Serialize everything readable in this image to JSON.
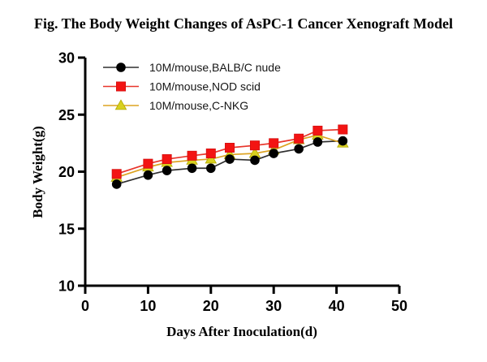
{
  "figure": {
    "title": "Fig. The Body Weight Changes of AsPC-1 Cancer Xenograft Model"
  },
  "chart_data": {
    "type": "line",
    "title": "Fig. The Body Weight Changes of AsPC-1 Cancer Xenograft Model",
    "xlabel": "Days After Inoculation(d)",
    "ylabel": "Body Weight(g)",
    "xlim": [
      0,
      50
    ],
    "ylim": [
      10,
      30
    ],
    "xticks": [
      0,
      10,
      20,
      30,
      40,
      50
    ],
    "yticks": [
      10,
      15,
      20,
      25,
      30
    ],
    "grid": false,
    "legend_position": "top-left",
    "x": [
      5,
      10,
      13,
      17,
      20,
      23,
      27,
      30,
      34,
      37,
      41
    ],
    "series": [
      {
        "name": "10M/mouse,BALB/C nude",
        "marker": "circle",
        "marker_color": "#000000",
        "marker_edge": "#000000",
        "line_color": "#2f2f2f",
        "values": [
          18.9,
          19.7,
          20.1,
          20.3,
          20.3,
          21.1,
          21.0,
          21.6,
          22.0,
          22.6,
          22.7
        ]
      },
      {
        "name": "10M/mouse,NOD scid",
        "marker": "square",
        "marker_color": "#f31413",
        "marker_edge": "#d40f0f",
        "line_color": "#e8352b",
        "values": [
          19.8,
          20.7,
          21.1,
          21.4,
          21.6,
          22.1,
          22.3,
          22.5,
          22.9,
          23.6,
          23.7
        ]
      },
      {
        "name": "10M/mouse,C-NKG",
        "marker": "triangle",
        "marker_color": "#d8d01f",
        "marker_edge": "#b2a900",
        "line_color": "#dda321",
        "values": [
          19.5,
          20.4,
          20.8,
          21.0,
          21.1,
          21.5,
          21.6,
          21.9,
          22.8,
          23.2,
          22.5
        ]
      }
    ]
  }
}
